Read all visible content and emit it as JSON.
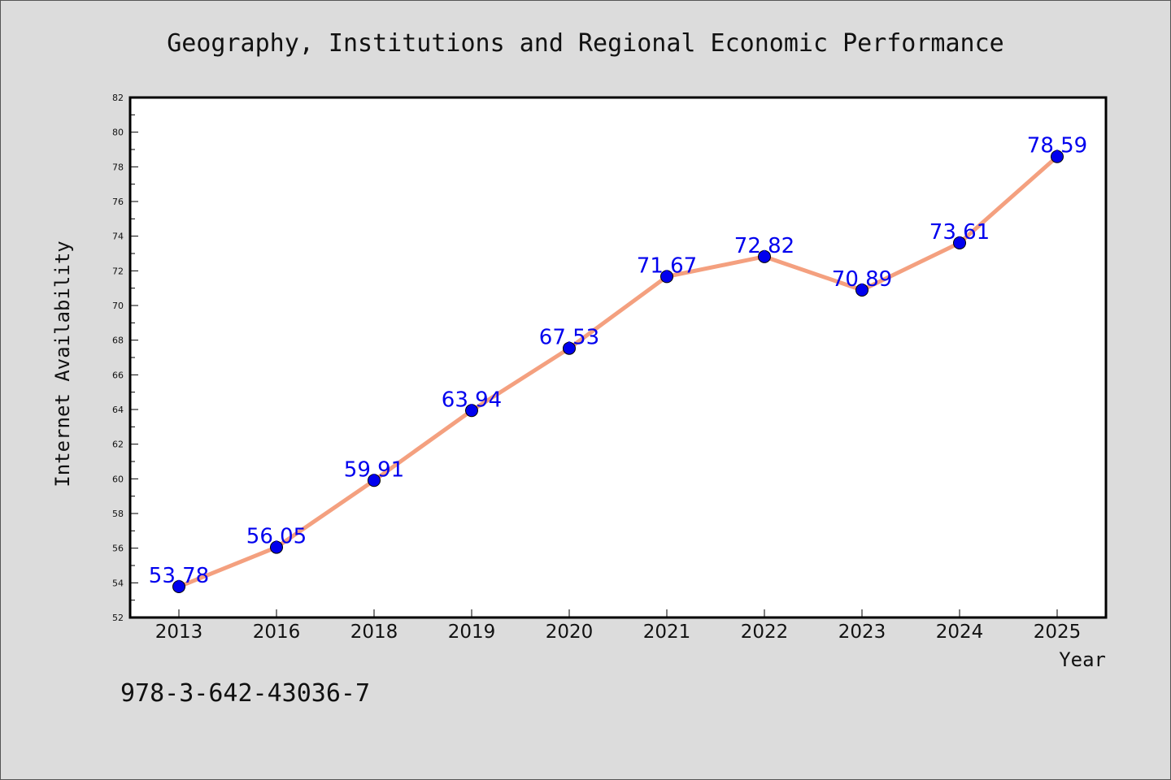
{
  "chart_data": {
    "type": "line",
    "title": "Geography, Institutions and Regional Economic Performance",
    "xlabel": "Year",
    "ylabel": "Internet Availability",
    "categories": [
      "2013",
      "2016",
      "2018",
      "2019",
      "2020",
      "2021",
      "2022",
      "2023",
      "2024",
      "2025"
    ],
    "values": [
      53.78,
      56.05,
      59.91,
      63.94,
      67.53,
      71.67,
      72.82,
      70.89,
      73.61,
      78.59
    ],
    "data_labels": [
      "53.78",
      "56.05",
      "59.91",
      "63.94",
      "67.53",
      "71.67",
      "72.82",
      "70.89",
      "73.61",
      "78.59"
    ],
    "ylim": [
      52,
      82
    ],
    "yticks": [
      52,
      54,
      56,
      58,
      60,
      62,
      64,
      66,
      68,
      70,
      72,
      74,
      76,
      78,
      80,
      82
    ],
    "grid": false,
    "line_color": "#f4a07f",
    "marker_color": "#0000ee",
    "label_color": "#0000ee"
  },
  "footer": {
    "isbn": "978-3-642-43036-7"
  }
}
